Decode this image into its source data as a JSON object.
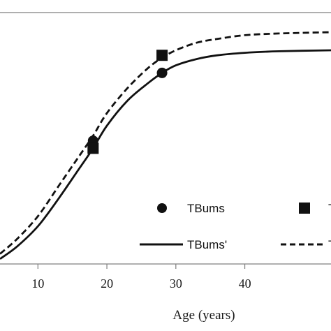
{
  "chart_data": {
    "type": "line",
    "xlabel": "Age (years)",
    "x_ticks": [
      10,
      20,
      30,
      40
    ],
    "xlim": [
      4.5,
      52.5
    ],
    "ylim": [
      0,
      100
    ],
    "frame_color": "#7f7f7f",
    "series": [
      {
        "name": "TBums",
        "kind": "points",
        "marker": "circle",
        "x": [
          18,
          28
        ],
        "y": [
          49,
          76
        ],
        "color": "#111111"
      },
      {
        "name": "T",
        "kind": "points",
        "marker": "square",
        "x": [
          18,
          28
        ],
        "y": [
          46,
          83
        ],
        "color": "#111111"
      },
      {
        "name": "TBums'",
        "kind": "line",
        "dash": "solid",
        "x": [
          4.5,
          7,
          10,
          13,
          16,
          18,
          20,
          23,
          26,
          28,
          30,
          33,
          36,
          40,
          45,
          52.5
        ],
        "y": [
          2,
          7,
          15,
          26,
          38,
          46,
          55,
          65,
          72,
          76,
          79,
          81.5,
          83,
          84,
          84.6,
          85
        ],
        "color": "#111111"
      },
      {
        "name": "T",
        "kind": "line",
        "dash": "dashed",
        "x": [
          4.5,
          7,
          10,
          13,
          16,
          18,
          20,
          23,
          26,
          28,
          30,
          33,
          36,
          40,
          45,
          52.5
        ],
        "y": [
          4,
          10,
          19,
          31,
          43,
          51,
          60,
          70,
          78,
          82,
          85,
          88,
          89.5,
          91,
          91.7,
          92.2
        ],
        "color": "#111111"
      }
    ],
    "legend": [
      {
        "label": "TBums",
        "symbol": "circle"
      },
      {
        "label": "T",
        "symbol": "square"
      },
      {
        "label": "TBums'",
        "symbol": "solid-line"
      },
      {
        "label": "T",
        "symbol": "dashed-line"
      }
    ]
  }
}
